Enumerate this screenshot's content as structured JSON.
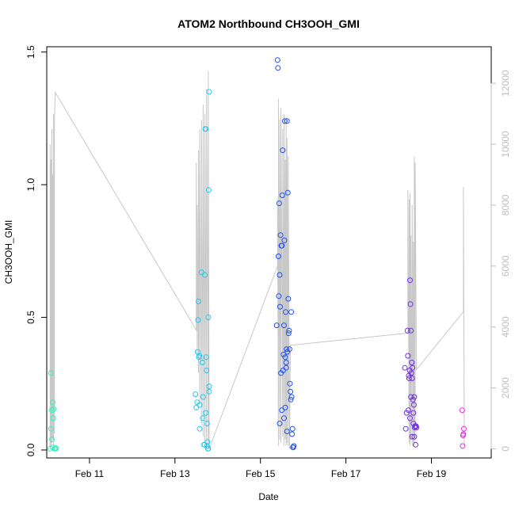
{
  "chart_data": {
    "type": "scatter",
    "title": "ATOM2 Northbound CH3OOH_GMI",
    "xlabel": "Date",
    "ylabel": "CH3OOH_GMI",
    "xlim": [
      10.0,
      20.4
    ],
    "ylim": [
      -0.03,
      1.52
    ],
    "y2lim": [
      -300,
      13200
    ],
    "x_ticks": [
      {
        "value": 11,
        "label": "Feb 11"
      },
      {
        "value": 13,
        "label": "Feb 13"
      },
      {
        "value": 15,
        "label": "Feb 15"
      },
      {
        "value": 17,
        "label": "Feb 17"
      },
      {
        "value": 19,
        "label": "Feb 19"
      }
    ],
    "y_ticks": [
      {
        "value": 0.0,
        "label": "0.0"
      },
      {
        "value": 0.5,
        "label": "0.5"
      },
      {
        "value": 1.0,
        "label": "1.0"
      },
      {
        "value": 1.5,
        "label": "1.5"
      }
    ],
    "y2_ticks": [
      {
        "value": 0,
        "label": "0"
      },
      {
        "value": 2000,
        "label": "2000"
      },
      {
        "value": 4000,
        "label": "4000"
      },
      {
        "value": 6000,
        "label": "6000"
      },
      {
        "value": 8000,
        "label": "8000"
      },
      {
        "value": 10000,
        "label": "10000"
      },
      {
        "value": 12000,
        "label": "12000"
      }
    ],
    "secondary_series": {
      "color": "#c8c8c8",
      "points": [
        [
          10.08,
          0
        ],
        [
          10.08,
          10000
        ],
        [
          10.1,
          100
        ],
        [
          10.1,
          9500
        ],
        [
          10.12,
          200
        ],
        [
          10.12,
          10500
        ],
        [
          10.14,
          300
        ],
        [
          10.14,
          9000
        ],
        [
          10.16,
          100
        ],
        [
          10.16,
          11000
        ],
        [
          10.18,
          500
        ],
        [
          10.18,
          10800
        ],
        [
          10.2,
          11700
        ],
        [
          13.5,
          3900
        ],
        [
          13.5,
          9400
        ],
        [
          13.52,
          3000
        ],
        [
          13.52,
          8000
        ],
        [
          13.55,
          2500
        ],
        [
          13.55,
          9800
        ],
        [
          13.58,
          1500
        ],
        [
          13.58,
          10500
        ],
        [
          13.62,
          800
        ],
        [
          13.62,
          10800
        ],
        [
          13.66,
          400
        ],
        [
          13.66,
          11300
        ],
        [
          13.7,
          200
        ],
        [
          13.7,
          11000
        ],
        [
          13.74,
          100
        ],
        [
          13.74,
          11800
        ],
        [
          13.78,
          50
        ],
        [
          13.78,
          12400
        ],
        [
          13.8,
          0
        ],
        [
          15.4,
          6000
        ],
        [
          15.4,
          8000
        ],
        [
          15.42,
          100
        ],
        [
          15.42,
          11500
        ],
        [
          15.45,
          300
        ],
        [
          15.45,
          10800
        ],
        [
          15.48,
          200
        ],
        [
          15.48,
          11200
        ],
        [
          15.52,
          400
        ],
        [
          15.52,
          10500
        ],
        [
          15.55,
          100
        ],
        [
          15.55,
          11000
        ],
        [
          15.58,
          300
        ],
        [
          15.58,
          9500
        ],
        [
          15.6,
          100
        ],
        [
          15.6,
          10800
        ],
        [
          15.62,
          200
        ],
        [
          15.62,
          10200
        ],
        [
          15.65,
          100
        ],
        [
          15.65,
          9600
        ],
        [
          15.68,
          0
        ],
        [
          15.7,
          3400
        ],
        [
          18.45,
          3800
        ],
        [
          18.45,
          8500
        ],
        [
          18.48,
          200
        ],
        [
          18.48,
          8200
        ],
        [
          18.5,
          100
        ],
        [
          18.5,
          8400
        ],
        [
          18.52,
          300
        ],
        [
          18.52,
          7000
        ],
        [
          18.55,
          100
        ],
        [
          18.55,
          8000
        ],
        [
          18.58,
          200
        ],
        [
          18.58,
          6800
        ],
        [
          18.6,
          100
        ],
        [
          18.6,
          9600
        ],
        [
          18.62,
          300
        ],
        [
          18.62,
          9400
        ],
        [
          18.65,
          2600
        ],
        [
          19.75,
          4500
        ],
        [
          19.75,
          8600
        ],
        [
          19.77,
          100
        ]
      ]
    },
    "series": [
      {
        "name": "",
        "color": "#30f0c0",
        "points": [
          [
            10.08,
            0.005
          ],
          [
            10.1,
            0.29
          ],
          [
            10.1,
            0.08
          ],
          [
            10.12,
            0.15
          ],
          [
            10.14,
            0.18
          ],
          [
            10.15,
            0.12
          ],
          [
            10.12,
            0.04
          ],
          [
            10.16,
            0.155
          ],
          [
            10.14,
            0.01
          ],
          [
            10.18,
            0.005
          ],
          [
            10.2,
            0.005
          ],
          [
            10.22,
            0.007
          ]
        ]
      },
      {
        "name": "",
        "color": "#20c8f0",
        "points": [
          [
            13.48,
            0.21
          ],
          [
            13.5,
            0.16
          ],
          [
            13.52,
            0.18
          ],
          [
            13.53,
            0.37
          ],
          [
            13.54,
            0.49
          ],
          [
            13.55,
            0.56
          ],
          [
            13.56,
            0.35
          ],
          [
            13.57,
            0.355
          ],
          [
            13.58,
            0.17
          ],
          [
            13.58,
            0.08
          ],
          [
            13.62,
            0.67
          ],
          [
            13.64,
            0.33
          ],
          [
            13.65,
            0.12
          ],
          [
            13.66,
            0.2
          ],
          [
            13.68,
            0.02
          ],
          [
            13.69,
            0.02
          ],
          [
            13.7,
            0.66
          ],
          [
            13.71,
            1.21
          ],
          [
            13.72,
            1.21
          ],
          [
            13.73,
            0.35
          ],
          [
            13.74,
            0.3
          ],
          [
            13.75,
            0.015
          ],
          [
            13.76,
            0.03
          ],
          [
            13.77,
            0.005
          ],
          [
            13.78,
            0.005
          ],
          [
            13.78,
            0.5
          ],
          [
            13.79,
            0.98
          ],
          [
            13.8,
            1.35
          ],
          [
            13.8,
            0.24
          ],
          [
            13.8,
            0.22
          ],
          [
            13.72,
            0.14
          ],
          [
            13.75,
            0.1
          ]
        ]
      },
      {
        "name": "",
        "color": "#2050f0",
        "points": [
          [
            15.38,
            0.47
          ],
          [
            15.4,
            1.47
          ],
          [
            15.41,
            1.44
          ],
          [
            15.42,
            0.73
          ],
          [
            15.43,
            0.58
          ],
          [
            15.44,
            0.93
          ],
          [
            15.45,
            0.66
          ],
          [
            15.46,
            0.54
          ],
          [
            15.47,
            0.81
          ],
          [
            15.48,
            0.29
          ],
          [
            15.49,
            0.77
          ],
          [
            15.5,
            0.77
          ],
          [
            15.51,
            0.96
          ],
          [
            15.52,
            1.13
          ],
          [
            15.53,
            0.3
          ],
          [
            15.54,
            0.36
          ],
          [
            15.55,
            0.47
          ],
          [
            15.56,
            0.79
          ],
          [
            15.57,
            1.24
          ],
          [
            15.58,
            0.35
          ],
          [
            15.59,
            0.52
          ],
          [
            15.6,
            0.33
          ],
          [
            15.61,
            0.38
          ],
          [
            15.62,
            1.24
          ],
          [
            15.63,
            0.37
          ],
          [
            15.64,
            0.97
          ],
          [
            15.65,
            0.57
          ],
          [
            15.66,
            0.44
          ],
          [
            15.67,
            0.45
          ],
          [
            15.68,
            0.38
          ],
          [
            15.69,
            0.25
          ],
          [
            15.7,
            0.22
          ],
          [
            15.71,
            0.19
          ],
          [
            15.72,
            0.52
          ],
          [
            15.73,
            0.2
          ],
          [
            15.74,
            0.06
          ],
          [
            15.75,
            0.08
          ],
          [
            15.76,
            0.01
          ],
          [
            15.77,
            0.01
          ],
          [
            15.78,
            0.015
          ],
          [
            15.45,
            0.1
          ],
          [
            15.5,
            0.15
          ],
          [
            15.55,
            0.12
          ],
          [
            15.6,
            0.31
          ],
          [
            15.62,
            0.07
          ],
          [
            15.58,
            0.16
          ]
        ]
      },
      {
        "name": "",
        "color": "#7030e0",
        "points": [
          [
            18.38,
            0.31
          ],
          [
            18.4,
            0.08
          ],
          [
            18.42,
            0.14
          ],
          [
            18.44,
            0.45
          ],
          [
            18.45,
            0.355
          ],
          [
            18.46,
            0.15
          ],
          [
            18.47,
            0.28
          ],
          [
            18.48,
            0.27
          ],
          [
            18.49,
            0.3
          ],
          [
            18.5,
            0.64
          ],
          [
            18.51,
            0.55
          ],
          [
            18.52,
            0.45
          ],
          [
            18.53,
            0.29
          ],
          [
            18.54,
            0.33
          ],
          [
            18.55,
            0.27
          ],
          [
            18.56,
            0.31
          ],
          [
            18.57,
            0.19
          ],
          [
            18.58,
            0.1
          ],
          [
            18.59,
            0.17
          ],
          [
            18.6,
            0.2
          ],
          [
            18.61,
            0.085
          ],
          [
            18.62,
            0.09
          ],
          [
            18.63,
            0.02
          ],
          [
            18.64,
            0.09
          ],
          [
            18.65,
            0.085
          ],
          [
            18.5,
            0.12
          ],
          [
            18.52,
            0.2
          ],
          [
            18.55,
            0.05
          ],
          [
            18.6,
            0.05
          ],
          [
            18.58,
            0.14
          ]
        ]
      },
      {
        "name": "",
        "color": "#e030e0",
        "points": [
          [
            19.72,
            0.15
          ],
          [
            19.74,
            0.055
          ],
          [
            19.75,
            0.06
          ],
          [
            19.76,
            0.08
          ],
          [
            19.73,
            0.015
          ]
        ]
      }
    ]
  }
}
